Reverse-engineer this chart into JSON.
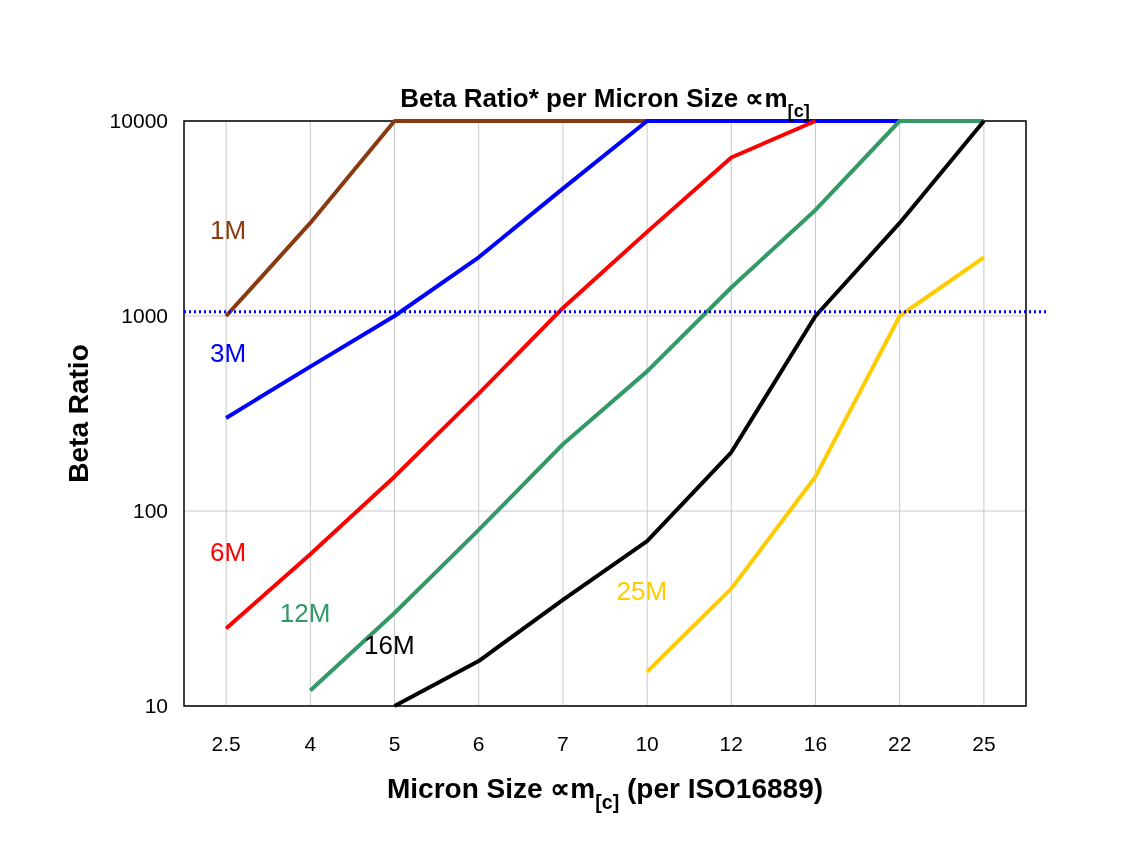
{
  "chart_data": {
    "type": "line",
    "title": "Beta Ratio* per Micron Size ∝m$_{[c]}$",
    "xlabel": "Micron Size ∝m$_{[c]}$ (per ISO16889)",
    "ylabel": "Beta Ratio",
    "categories": [
      "2.5",
      "4",
      "5",
      "6",
      "7",
      "10",
      "12",
      "16",
      "22",
      "25"
    ],
    "series": [
      {
        "name": "1M",
        "color": "#8b3a0f",
        "values": [
          1000,
          3000,
          10000,
          10000,
          10000,
          10000,
          null,
          null,
          null,
          null
        ]
      },
      {
        "name": "3M",
        "color": "#0000ff",
        "values": [
          300,
          550,
          1000,
          2000,
          4500,
          10000,
          10000,
          10000,
          10000,
          null
        ]
      },
      {
        "name": "6M",
        "color": "#ff0000",
        "values": [
          25,
          60,
          150,
          400,
          1100,
          2700,
          6500,
          10000,
          null,
          null
        ]
      },
      {
        "name": "12M",
        "color": "#339966",
        "values": [
          null,
          12,
          30,
          80,
          220,
          520,
          1400,
          3500,
          10000,
          10000
        ]
      },
      {
        "name": "16M",
        "color": "#000000",
        "values": [
          null,
          null,
          10,
          17,
          35,
          70,
          200,
          1000,
          3000,
          10000
        ]
      },
      {
        "name": "25M",
        "color": "#ffcc00",
        "values": [
          null,
          null,
          null,
          null,
          null,
          15,
          40,
          150,
          1000,
          2000
        ]
      }
    ],
    "log": true,
    "ylim": [
      10,
      10000
    ],
    "yticks": [
      10,
      100,
      1000,
      10000
    ],
    "grid": true,
    "legend": false,
    "line_style": "solid",
    "marker": "none",
    "ref_lines": [
      {
        "axis": "y",
        "value": 1050,
        "color": "#0000ff",
        "line_style": "dotted"
      }
    ]
  }
}
